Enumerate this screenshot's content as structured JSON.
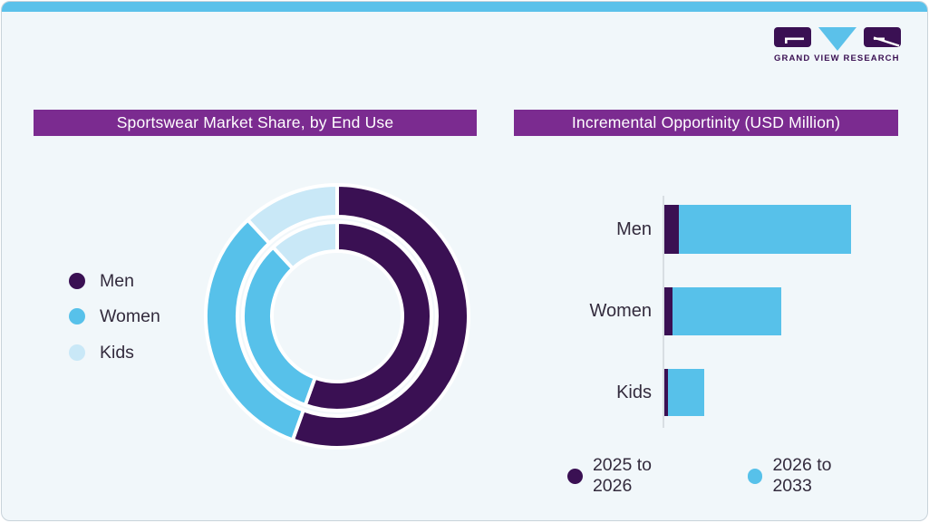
{
  "window": {
    "top_strip_color": "#5bc1ea",
    "card_bg": "#f1f7fa",
    "border_color": "#c9d3da"
  },
  "logo": {
    "caption": "GRAND VIEW RESEARCH",
    "purple": "#3a1053",
    "blue": "#5bc1ea"
  },
  "panels": {
    "market_share": {
      "title": "Sportswear Market Share, by End Use",
      "title_bg": "#7b2b90",
      "title_color": "#ffffff",
      "legend": [
        {
          "label": "Men",
          "color": "#3a1053"
        },
        {
          "label": "Women",
          "color": "#57c1ea"
        },
        {
          "label": "Kids",
          "color": "#c9e8f7"
        }
      ]
    },
    "incremental_opportunity": {
      "title": "Incremental Opportinity (USD Million)",
      "title_bg": "#7b2b90",
      "title_color": "#ffffff",
      "legend": [
        {
          "label": "2025 to 2026",
          "color": "#3a1053"
        },
        {
          "label": "2026 to 2033",
          "color": "#57c1ea"
        }
      ]
    }
  },
  "chart_data": [
    {
      "type": "pie",
      "subtype": "double-ring-donut",
      "title": "Sportswear Market Share, by End Use",
      "categories": [
        "Men",
        "Women",
        "Kids"
      ],
      "colors": [
        "#3a1053",
        "#57c1ea",
        "#c9e8f7"
      ],
      "rings": [
        {
          "name": "outer",
          "values_pct": [
            55.5,
            32.6,
            11.9
          ]
        },
        {
          "name": "inner",
          "values_pct": [
            55.5,
            32.6,
            11.9
          ]
        }
      ],
      "start_angle_deg": 0,
      "direction": "clockwise",
      "value_labels_visible": false,
      "note": "percentages estimated from arc angles; no numeric labels shown in image"
    },
    {
      "type": "bar",
      "orientation": "horizontal",
      "stacked": true,
      "title": "Incremental Opportinity (USD Million)",
      "categories": [
        "Men",
        "Women",
        "Kids"
      ],
      "series": [
        {
          "name": "2025 to 2026",
          "color": "#3a1053",
          "values": [
            16,
            9,
            3.5
          ]
        },
        {
          "name": "2026 to 2033",
          "color": "#57c1ea",
          "values": [
            189,
            119,
            40
          ]
        }
      ],
      "axis_numbers_visible": false,
      "legend_position": "bottom",
      "note": "relative segment lengths estimated from pixels; no numeric axis shown"
    }
  ]
}
